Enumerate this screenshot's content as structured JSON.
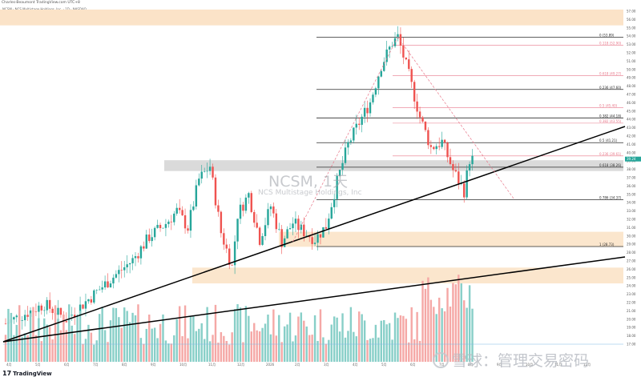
{
  "header": {
    "author_line": "Charles-Beaumont TradingView.com UTC+8",
    "symbol_line": "NCSM · NCS Multistage Holdings, Inc. · 1D · NASDAQ",
    "volume_label": "Vol (20)",
    "volume_value": "56.32K",
    "volume_ma": "16.87K"
  },
  "watermark": {
    "ticker": "NCSM, 1天",
    "company": "NCS Multistage Holdings, Inc"
  },
  "branding": {
    "tradingview": "TradingView",
    "xueqiu": "雪球：管理交易密码"
  },
  "colors": {
    "up": "#26a69a",
    "down": "#ef5350",
    "fib_black": "#2b2b2b",
    "fib_pink": "#e8788a",
    "zone_orange": "#fbe3c8",
    "zone_gray": "#d6d6d6",
    "last_price_bg": "#26a69a"
  },
  "chart_data": {
    "type": "candlestick",
    "price_axis": {
      "min": 17,
      "max": 57,
      "ticks": [
        57,
        56,
        55,
        54,
        53,
        52,
        51,
        50,
        49,
        48,
        47,
        46,
        45,
        44,
        43,
        42,
        41,
        40,
        39,
        38,
        37,
        36,
        35,
        34,
        33,
        32,
        31,
        30,
        29,
        28,
        27,
        26,
        25,
        24,
        23,
        22,
        21,
        20,
        19,
        18,
        17
      ]
    },
    "x_ticks": [
      "4月",
      "5月",
      "6月",
      "7月",
      "8月",
      "9月",
      "10月",
      "11月",
      "12月",
      "2026",
      "2月",
      "3月",
      "4月",
      "5月",
      "6月",
      "7月",
      "8月",
      "9月",
      "10月",
      "11月",
      "12月"
    ],
    "last_price": "39.24",
    "fib_levels": [
      {
        "ratio": "0",
        "price": 53.89,
        "label": "0 (53.89)",
        "color": "black"
      },
      {
        "ratio": "0.118",
        "price": 52.9,
        "label": "0.118 (52.90)",
        "color": "pink"
      },
      {
        "ratio": "0.618",
        "price": 49.27,
        "label": "0.618 (49.27)",
        "color": "pink"
      },
      {
        "ratio": "0.236",
        "price": 47.6,
        "label": "0.236 (47.60)",
        "color": "black"
      },
      {
        "ratio": "0.5",
        "price": 45.4,
        "label": "0.5 (45.40)",
        "color": "pink"
      },
      {
        "ratio": "0.382",
        "price": 44.18,
        "label": "0.382 (44.18)",
        "color": "black"
      },
      {
        "ratio": "0.382",
        "price": 43.55,
        "label": "0.382 (43.55)",
        "color": "pink"
      },
      {
        "ratio": "0.5",
        "price": 41.21,
        "label": "0.5 (41.21)",
        "color": "black"
      },
      {
        "ratio": "0.236",
        "price": 39.61,
        "label": "0.236 (39.61)",
        "color": "pink"
      },
      {
        "ratio": "0.618",
        "price": 38.26,
        "label": "0.618 (38.26)",
        "color": "black"
      },
      {
        "ratio": "0.786",
        "price": 34.37,
        "label": "0.786 (34.37)",
        "color": "black"
      },
      {
        "ratio": "1",
        "price": 28.73,
        "label": "1 (28.73)",
        "color": "black"
      }
    ],
    "zones": [
      {
        "kind": "resistance",
        "low": 37.8,
        "high": 39.1
      },
      {
        "kind": "support",
        "low": 28.7,
        "high": 30.5
      },
      {
        "kind": "support",
        "low": 24.3,
        "high": 26.2
      }
    ],
    "zone_top_orange": {
      "low": 55.3,
      "high": 57.2
    },
    "anchors": {
      "start_idx": 0,
      "peak_idx": 142,
      "low_idx": 112,
      "end_idx": 168
    }
  }
}
